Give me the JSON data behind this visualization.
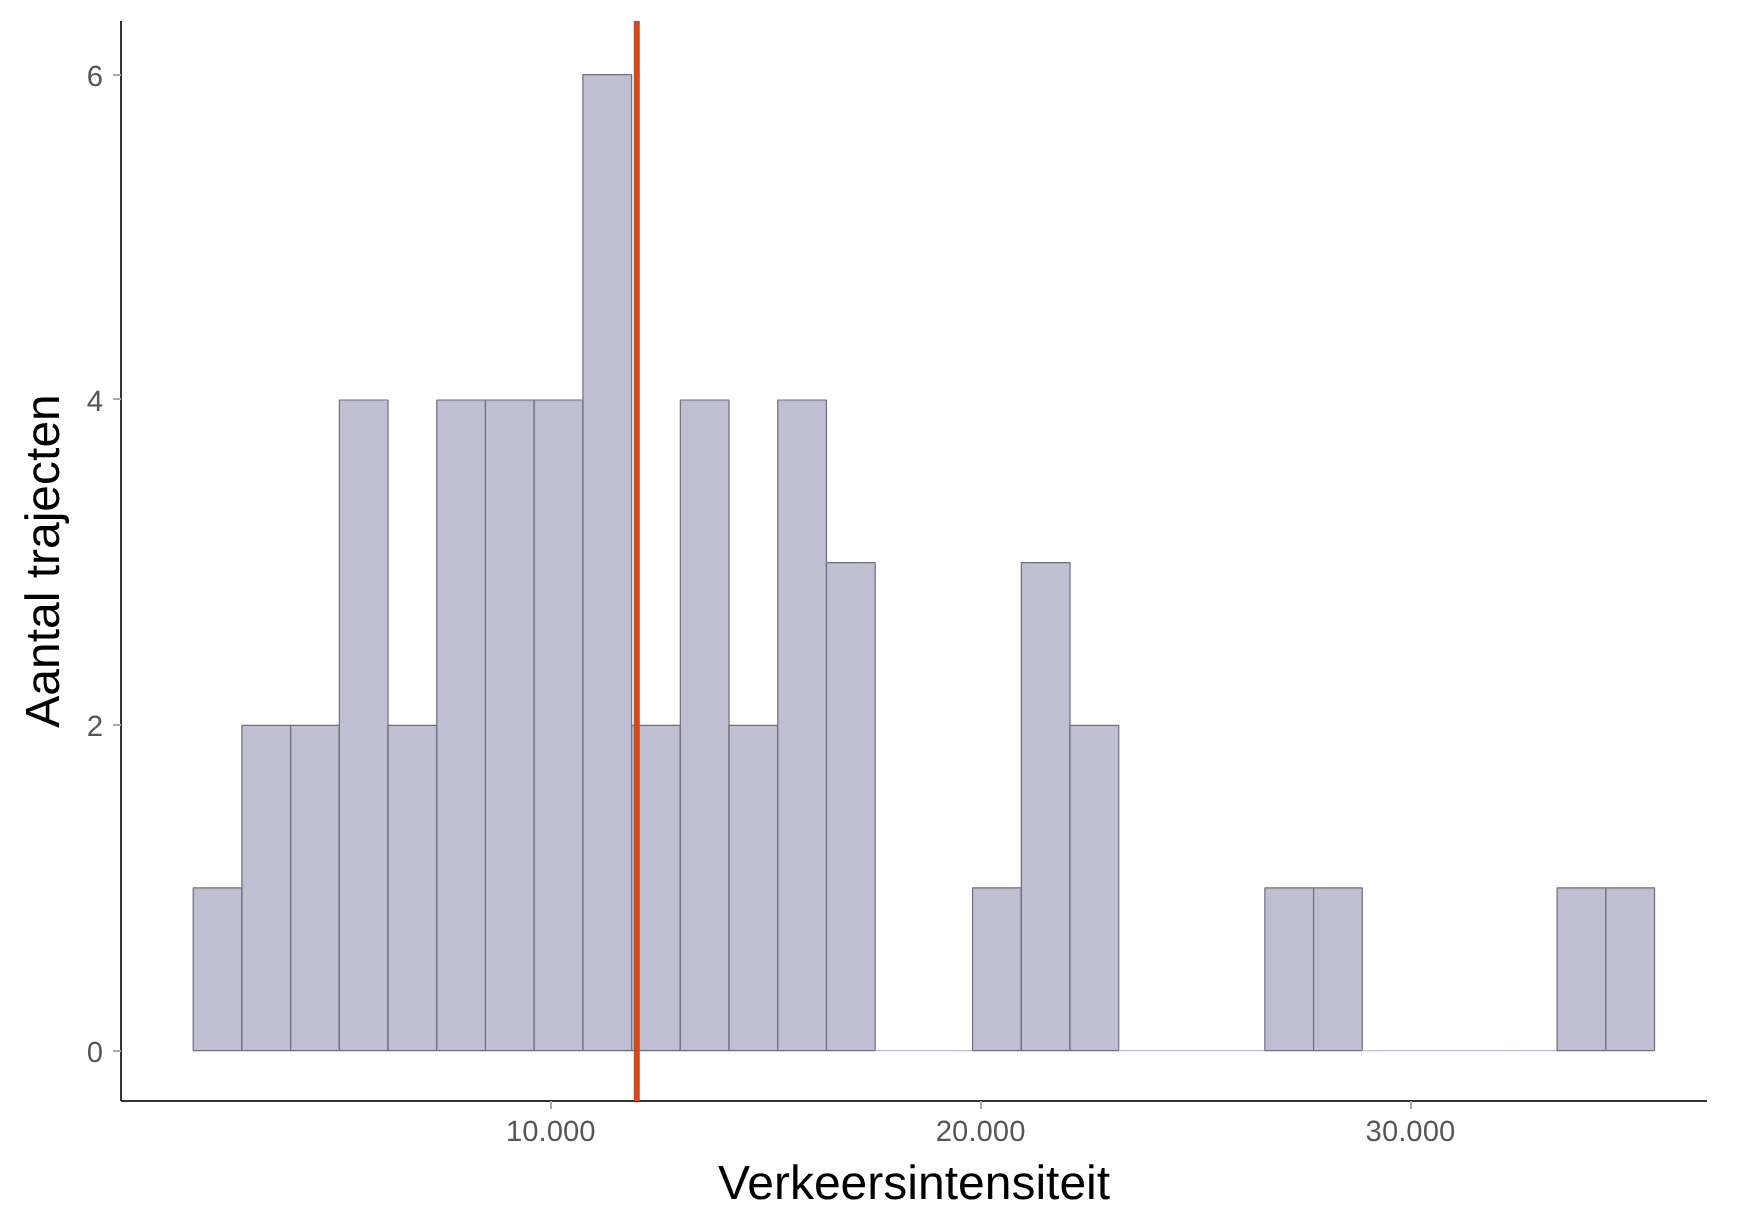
{
  "chart_data": {
    "type": "histogram",
    "xlabel": "Verkeersintensiteit",
    "ylabel": "Aantal trajecten",
    "bins": [
      1680,
      2813,
      3947,
      5080,
      6213,
      7347,
      8480,
      9613,
      10747,
      11880,
      13013,
      14147,
      15280,
      16413,
      17547,
      18680,
      19813,
      20947,
      22080,
      23213,
      24347,
      25480,
      26613,
      27747,
      28880,
      30013,
      31147,
      32280,
      33413,
      34547,
      35680
    ],
    "values": [
      1,
      2,
      2,
      4,
      2,
      4,
      4,
      4,
      6,
      2,
      4,
      2,
      4,
      3,
      0,
      0,
      1,
      3,
      2,
      0,
      0,
      0,
      1,
      1,
      0,
      0,
      0,
      0,
      1,
      1
    ],
    "color": "#bfbfd1",
    "xlim": [
      0,
      36900
    ],
    "ylim": [
      -0.31,
      6.33
    ],
    "xticks": [
      {
        "value": 10000,
        "label": "10.000"
      },
      {
        "value": 20000,
        "label": "20.000"
      },
      {
        "value": 30000,
        "label": "30.000"
      }
    ],
    "yticks": [
      0,
      2,
      4,
      6
    ],
    "ref_lines": [
      {
        "axis": "x",
        "value": 12000,
        "label": null,
        "color": "#d14a1f"
      }
    ],
    "grid": false
  }
}
